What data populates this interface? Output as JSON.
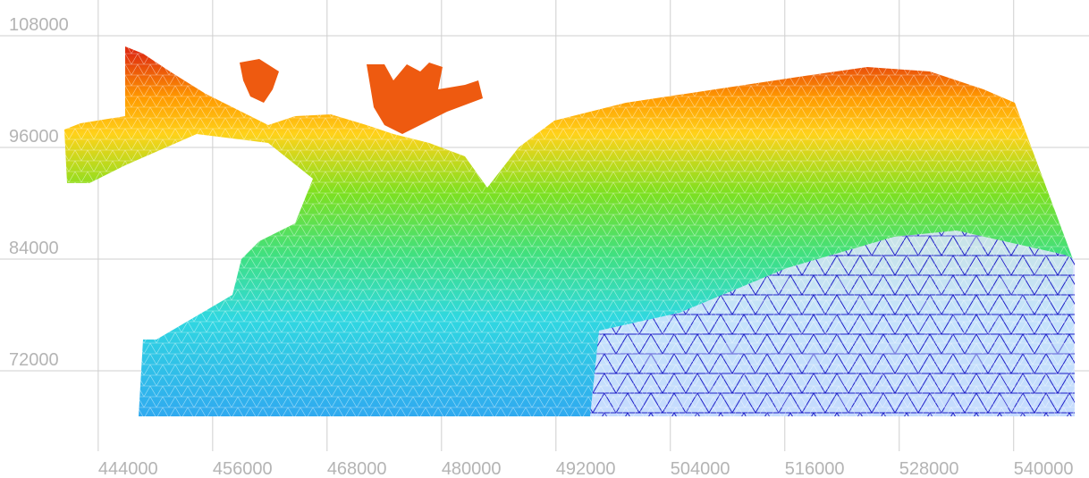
{
  "chart_data": {
    "type": "mesh",
    "xlim": [
      433700,
      547900
    ],
    "ylim": [
      63360,
      111840
    ],
    "xticks": [
      444000,
      456000,
      468000,
      480000,
      492000,
      504000,
      516000,
      528000,
      540000
    ],
    "yticks": [
      72000,
      84000,
      96000,
      108000
    ],
    "grid": true
  }
}
